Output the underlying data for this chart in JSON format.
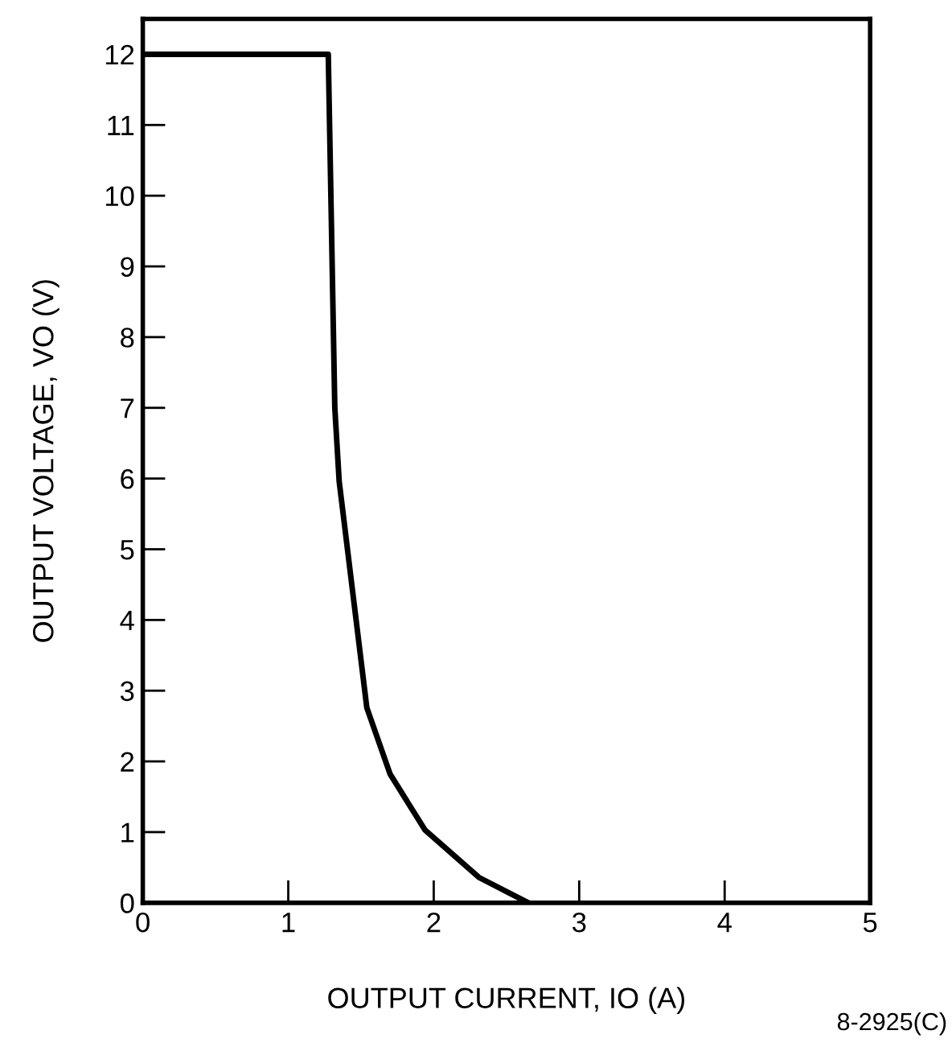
{
  "chart_data": {
    "type": "line",
    "xlabel": "OUTPUT CURRENT, IO (A)",
    "ylabel": "OUTPUT VOLTAGE, VO (V)",
    "x": [
      0,
      1.275,
      1.32,
      1.35,
      1.54,
      1.7,
      1.94,
      2.31,
      2.65
    ],
    "series": [
      {
        "color": "#000000",
        "values": [
          12,
          12,
          7.0,
          5.96,
          2.76,
          1.82,
          1.03,
          0.36,
          0
        ]
      }
    ],
    "xlim": [
      0,
      5
    ],
    "ylim": [
      0,
      12.5
    ],
    "xticks": [
      0,
      1,
      2,
      3,
      4,
      5
    ],
    "yticks": [
      0,
      1,
      2,
      3,
      4,
      5,
      6,
      7,
      8,
      9,
      10,
      11,
      12
    ],
    "grid": false,
    "legend": false,
    "marker": "none",
    "line_style": "solid",
    "annotations": [
      "8-2925(C)"
    ]
  }
}
